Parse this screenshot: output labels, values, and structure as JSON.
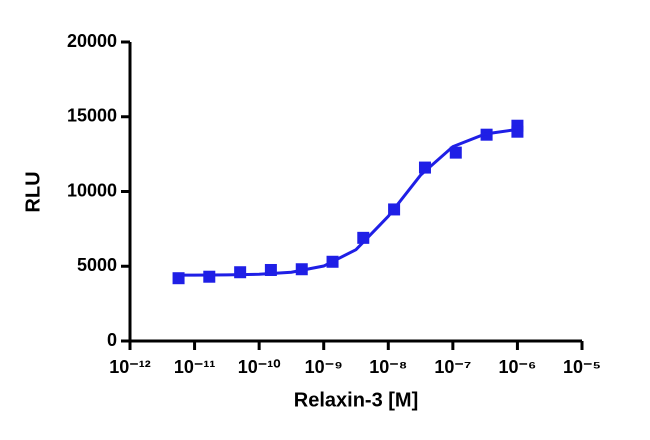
{
  "chart_data": {
    "type": "scatter",
    "xlabel": "Relaxin-3 [M]",
    "ylabel": "RLU",
    "xscale": "log",
    "xlim": [
      1e-12,
      1e-05
    ],
    "xticks": [
      {
        "value": 1e-12,
        "label": "10⁻¹²"
      },
      {
        "value": 1e-11,
        "label": "10⁻¹¹"
      },
      {
        "value": 1e-10,
        "label": "10⁻¹⁰"
      },
      {
        "value": 1e-09,
        "label": "10⁻⁹"
      },
      {
        "value": 1e-08,
        "label": "10⁻⁸"
      },
      {
        "value": 1e-07,
        "label": "10⁻⁷"
      },
      {
        "value": 1e-06,
        "label": "10⁻⁶"
      },
      {
        "value": 1e-05,
        "label": "10⁻⁵"
      }
    ],
    "ylim": [
      0,
      20000
    ],
    "yticks": [
      0,
      5000,
      10000,
      15000,
      20000
    ],
    "series": [
      {
        "kind": "points",
        "color": "#1f1fe6",
        "x": [
          5.65e-12,
          1.69e-11,
          5.08e-11,
          1.52e-10,
          4.57e-10,
          1.37e-09,
          4.1e-09,
          1.23e-08,
          3.7e-08,
          1.11e-07,
          3.33e-07,
          1e-06,
          1e-06
        ],
        "values": [
          4200,
          4300,
          4600,
          4750,
          4800,
          5300,
          6900,
          8800,
          11600,
          12600,
          13800,
          14400,
          14000
        ]
      },
      {
        "kind": "curve",
        "color": "#1f1fe6",
        "x": [
          5.6e-12,
          1e-11,
          3.16e-11,
          1e-10,
          3.16e-10,
          1e-09,
          3.16e-09,
          1e-08,
          3.16e-08,
          1e-07,
          3.16e-07,
          1e-06
        ],
        "values": [
          4404,
          4407,
          4421,
          4465,
          4602,
          5015,
          6110,
          8340,
          11094,
          13000,
          13847,
          14153
        ]
      }
    ]
  }
}
